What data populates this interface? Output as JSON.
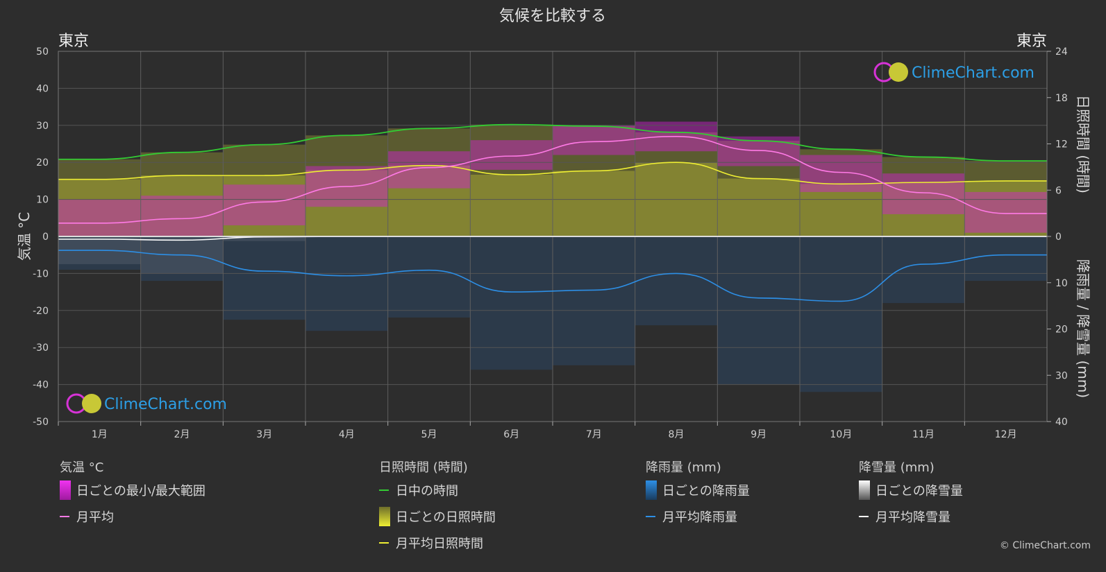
{
  "title": "気候を比較する",
  "city_left": "東京",
  "city_right": "東京",
  "axis_left_label": "気温 °C",
  "axis_right_top_label": "日照時間 (時間)",
  "axis_right_bottom_label": "降雨量 / 降雪量 (mm)",
  "watermark": "ClimeChart.com",
  "copyright": "© ClimeChart.com",
  "legend": {
    "temp": {
      "head": "気温 °C",
      "range": "日ごとの最小/最大範囲",
      "avg": "月平均"
    },
    "sun": {
      "head": "日照時間 (時間)",
      "daylight": "日中の時間",
      "daily": "日ごとの日照時間",
      "avg": "月平均日照時間"
    },
    "rain": {
      "head": "降雨量 (mm)",
      "daily": "日ごとの降雨量",
      "avg": "月平均降雨量"
    },
    "snow": {
      "head": "降雪量 (mm)",
      "daily": "日ごとの降雪量",
      "avg": "月平均降雪量"
    }
  },
  "colors": {
    "background": "#2d2d2d",
    "grid": "#555555",
    "temp_range": "#d21ed2",
    "temp_avg": "#ff7ae6",
    "daylight": "#33cc33",
    "sunshine": "#b3b336",
    "sunshine_avg": "#eeee33",
    "rain": "#2a7ad2",
    "rain_avg": "#2d8fe6",
    "snow": "#cccccc",
    "snow_avg": "#ffffff"
  },
  "chart_data": {
    "type": "line",
    "categories": [
      "1月",
      "2月",
      "3月",
      "4月",
      "5月",
      "6月",
      "7月",
      "8月",
      "9月",
      "10月",
      "11月",
      "12月"
    ],
    "y_left": {
      "label": "気温 °C",
      "range": [
        -50,
        50
      ],
      "ticks": [
        50,
        40,
        30,
        20,
        10,
        0,
        -10,
        -20,
        -30,
        -40,
        -50
      ]
    },
    "y_right_top": {
      "label": "日照時間 (時間)",
      "range": [
        0,
        24
      ],
      "ticks": [
        24,
        18,
        12,
        6,
        0
      ]
    },
    "y_right_bottom": {
      "label": "降雨量 / 降雪量 (mm)",
      "range": [
        0,
        40
      ],
      "ticks": [
        0,
        10,
        20,
        30,
        40
      ]
    },
    "series": [
      {
        "name": "日中の時間",
        "axis": "sun",
        "values": [
          10.0,
          10.9,
          11.9,
          13.1,
          14.0,
          14.5,
          14.3,
          13.5,
          12.4,
          11.3,
          10.3,
          9.8
        ]
      },
      {
        "name": "月平均日照時間",
        "axis": "sun",
        "values": [
          7.4,
          7.9,
          7.9,
          8.6,
          9.2,
          8.0,
          8.5,
          9.6,
          7.5,
          6.8,
          7.0,
          7.2
        ]
      },
      {
        "name": "月平均",
        "axis": "temp",
        "values": [
          3.6,
          4.8,
          9.3,
          13.5,
          18.6,
          21.7,
          25.6,
          27.0,
          23.2,
          17.3,
          11.8,
          6.2
        ]
      },
      {
        "name": "月平均降雨量",
        "axis": "precip",
        "values": [
          3.0,
          4.0,
          7.5,
          8.5,
          7.3,
          12.0,
          11.6,
          8.0,
          13.3,
          14.0,
          6.0,
          4.0
        ]
      },
      {
        "name": "月平均降雪量",
        "axis": "precip",
        "values": [
          0.6,
          0.8,
          0.1,
          0,
          0,
          0,
          0,
          0,
          0,
          0,
          0,
          0
        ]
      }
    ],
    "temp_range": {
      "name": "日ごとの最小/最大範囲",
      "min": [
        0,
        0,
        3,
        8,
        13,
        18,
        22,
        23,
        19,
        12,
        6,
        1
      ],
      "max": [
        10,
        11,
        14,
        19,
        23,
        26,
        30,
        31,
        27,
        22,
        17,
        12
      ]
    },
    "grid": true
  }
}
